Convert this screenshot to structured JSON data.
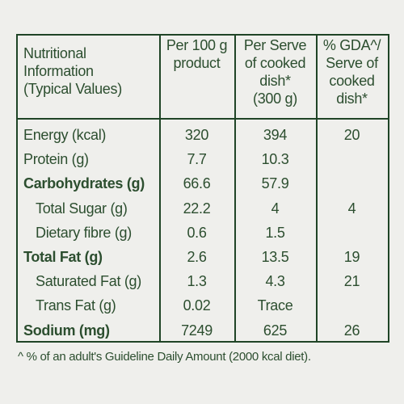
{
  "table": {
    "header": [
      [
        "Nutritional",
        "Information",
        "(Typical Values)"
      ],
      [
        "Per 100 g",
        "product"
      ],
      [
        "Per Serve",
        "of cooked",
        "dish*",
        "(300 g)"
      ],
      [
        "% GDA^/",
        "Serve of",
        "cooked",
        "dish*"
      ]
    ],
    "rows": [
      {
        "cells": [
          "Energy (kcal)",
          "320",
          "394",
          "20"
        ],
        "bold": false,
        "indent": false
      },
      {
        "cells": [
          "Protein (g)",
          "7.7",
          "10.3",
          null
        ],
        "bold": false,
        "indent": false
      },
      {
        "cells": [
          "Carbohydrates (g)",
          "66.6",
          "57.9",
          null
        ],
        "bold": true,
        "indent": false
      },
      {
        "cells": [
          "Total Sugar (g)",
          "22.2",
          "4",
          "4"
        ],
        "bold": false,
        "indent": true
      },
      {
        "cells": [
          "Dietary fibre (g)",
          "0.6",
          "1.5",
          null
        ],
        "bold": false,
        "indent": true
      },
      {
        "cells": [
          "Total Fat (g)",
          "2.6",
          "13.5",
          "19"
        ],
        "bold": true,
        "indent": false
      },
      {
        "cells": [
          "Saturated Fat (g)",
          "1.3",
          "4.3",
          "21"
        ],
        "bold": false,
        "indent": true
      },
      {
        "cells": [
          "Trans Fat (g)",
          "0.02",
          "Trace",
          null
        ],
        "bold": false,
        "indent": true
      },
      {
        "cells": [
          "Sodium (mg)",
          "7249",
          "625",
          "26"
        ],
        "bold": true,
        "indent": false
      }
    ],
    "footnote": "^ % of an adult's Guideline Daily Amount (2000 kcal diet)."
  }
}
